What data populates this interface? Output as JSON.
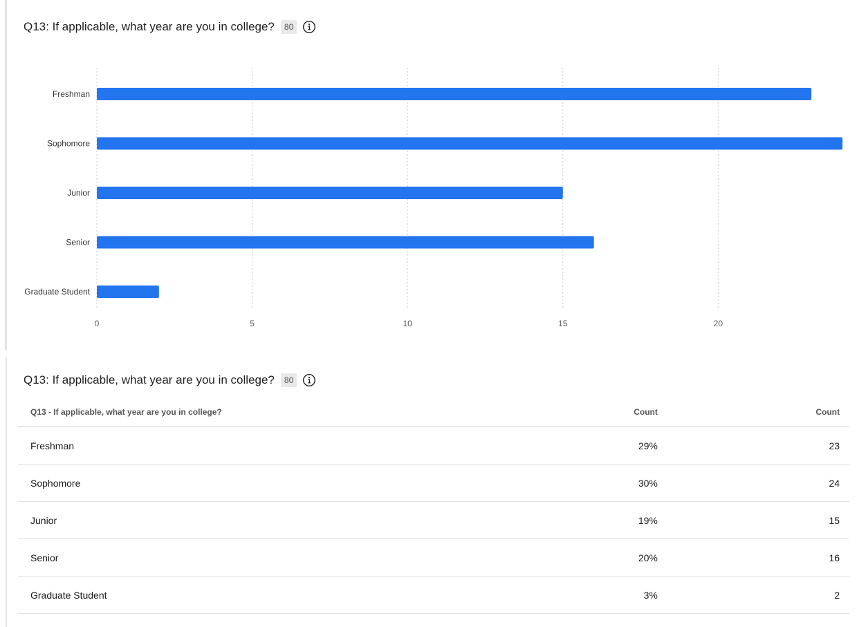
{
  "question": {
    "title": "Q13: If applicable, what year are you in college?",
    "response_count": "80"
  },
  "icons": {
    "info": "info-icon"
  },
  "colors": {
    "bar": "#2374ef",
    "grid": "#c9c9c9"
  },
  "chart_data": {
    "type": "bar",
    "orientation": "horizontal",
    "categories": [
      "Freshman",
      "Sophomore",
      "Junior",
      "Senior",
      "Graduate Student"
    ],
    "values": [
      23,
      24,
      15,
      16,
      2
    ],
    "xlim": [
      0,
      24
    ],
    "xticks": [
      0,
      5,
      10,
      15,
      20
    ],
    "grid": "vertical dotted"
  },
  "table": {
    "headers": [
      "Q13 - If applicable, what year are you in college?",
      "Count",
      "Count"
    ],
    "rows": [
      {
        "label": "Freshman",
        "percent": "29%",
        "count": "23"
      },
      {
        "label": "Sophomore",
        "percent": "30%",
        "count": "24"
      },
      {
        "label": "Junior",
        "percent": "19%",
        "count": "15"
      },
      {
        "label": "Senior",
        "percent": "20%",
        "count": "16"
      },
      {
        "label": "Graduate Student",
        "percent": "3%",
        "count": "2"
      }
    ]
  }
}
